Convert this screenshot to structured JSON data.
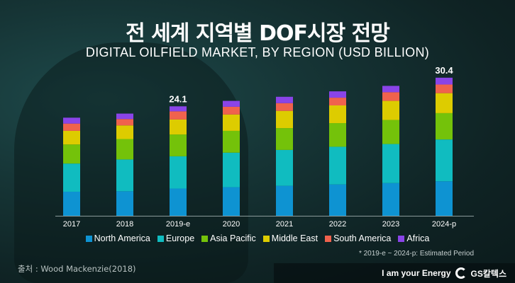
{
  "title": "전 세계 지역별 DOF시장 전망",
  "subtitle": "DIGITAL OILFIELD MARKET, BY REGION (USD BILLION)",
  "note": "* 2019-e ~ 2024-p: Estimated Period",
  "source": "출처 : Wood Mackenzie(2018)",
  "footer": {
    "slogan": "I am your Energy",
    "brand": "GS칼텍스"
  },
  "chart_data": {
    "type": "bar",
    "stacked": true,
    "title": "DIGITAL OILFIELD MARKET, BY REGION (USD BILLION)",
    "categories": [
      "2017",
      "2018",
      "2019-e",
      "2020",
      "2021",
      "2022",
      "2023",
      "2024-p"
    ],
    "series": [
      {
        "name": "North America",
        "color": "#0e93d2",
        "values": [
          5.3,
          5.4,
          6.0,
          6.3,
          6.6,
          6.9,
          7.2,
          7.6
        ]
      },
      {
        "name": "Europe",
        "color": "#10bcc0",
        "values": [
          6.2,
          7.0,
          7.1,
          7.6,
          7.9,
          8.3,
          8.6,
          9.2
        ]
      },
      {
        "name": "Asia Pacific",
        "color": "#74c20a",
        "values": [
          4.2,
          4.5,
          4.8,
          4.8,
          4.8,
          5.2,
          5.3,
          5.8
        ]
      },
      {
        "name": "Middle East",
        "color": "#ddcc00",
        "values": [
          3.0,
          3.0,
          3.3,
          3.6,
          3.8,
          3.9,
          4.2,
          4.4
        ]
      },
      {
        "name": "South America",
        "color": "#f0624d",
        "values": [
          1.6,
          1.4,
          1.8,
          1.7,
          1.7,
          1.7,
          1.9,
          1.9
        ]
      },
      {
        "name": "Africa",
        "color": "#8a44e8",
        "values": [
          1.3,
          1.2,
          1.1,
          1.3,
          1.4,
          1.4,
          1.4,
          1.5
        ]
      }
    ],
    "data_labels": [
      {
        "category": "2019-e",
        "text": "24.1"
      },
      {
        "category": "2024-p",
        "text": "30.4"
      }
    ],
    "legend": "bottom",
    "grid": false
  }
}
